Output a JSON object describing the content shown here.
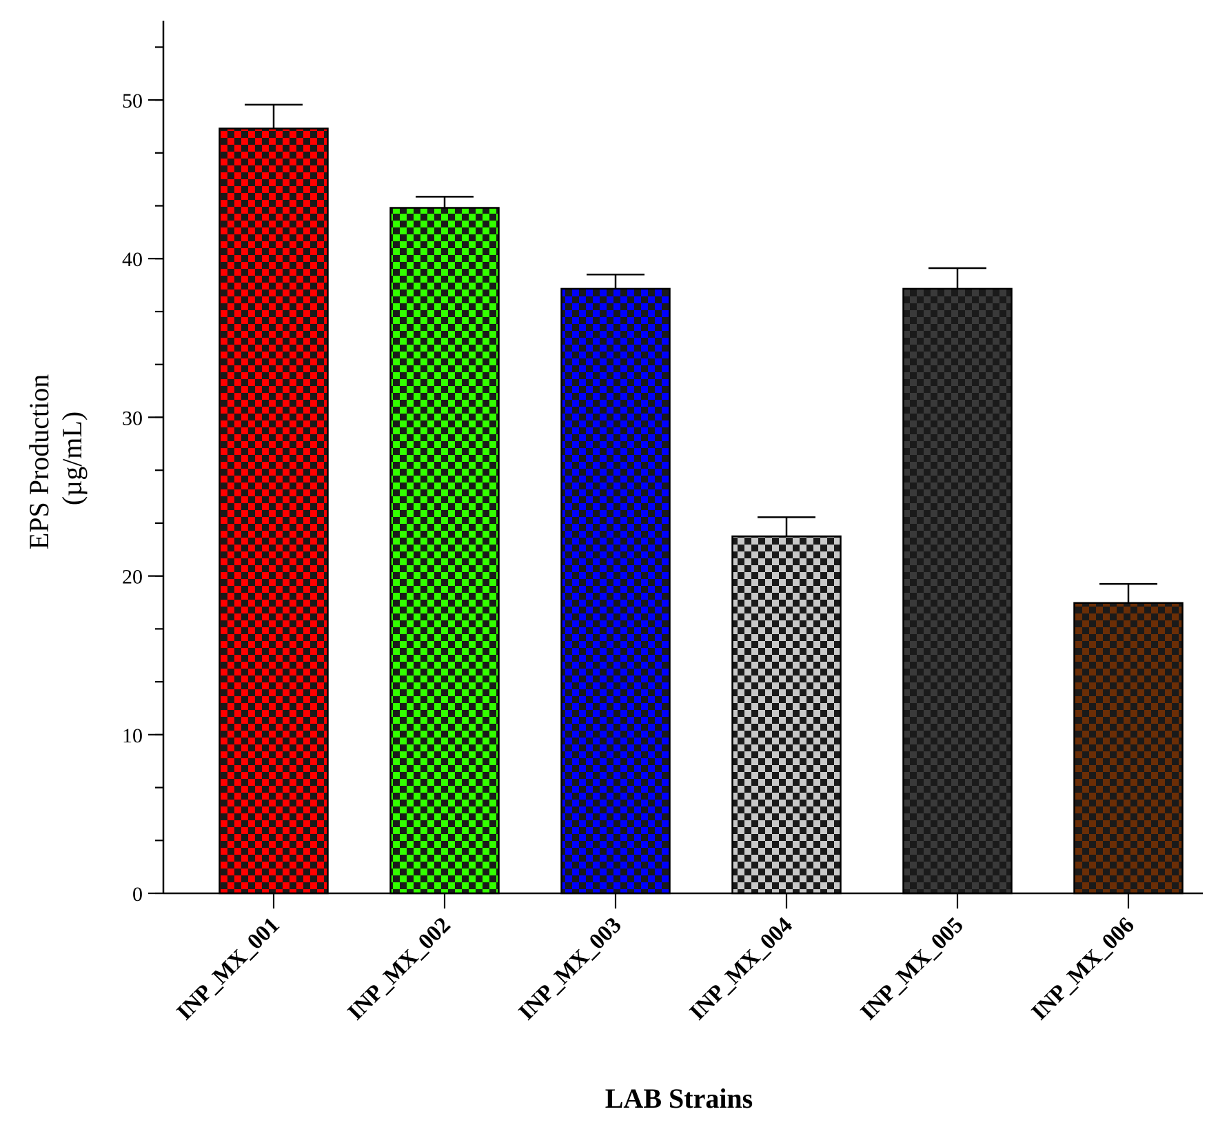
{
  "chart_data": {
    "type": "bar",
    "title": "",
    "xlabel": "LAB Strains",
    "ylabel_line1": "EPS Production",
    "ylabel_line2": "(µg/mL)",
    "ylim": [
      0,
      55
    ],
    "yticks": [
      0,
      10,
      20,
      30,
      40,
      50
    ],
    "minor_tick_step": 3.333,
    "grid": false,
    "legend": "none",
    "categories": [
      "INP_MX_001",
      "INP_MX_002",
      "INP_MX_003",
      "INP_MX_004",
      "INP_MX_005",
      "INP_MX_006"
    ],
    "values": [
      48.2,
      43.2,
      38.1,
      22.5,
      38.1,
      18.3
    ],
    "errors": [
      1.5,
      0.7,
      0.9,
      1.2,
      1.3,
      1.2
    ],
    "bar_colors": [
      "#ff0000",
      "#33ff00",
      "#0000ff",
      "#c8c8c8",
      "#3a3a3a",
      "#6b2e06"
    ],
    "pattern": "checkerboard",
    "pattern_dark_color": "#1a1a1a"
  }
}
